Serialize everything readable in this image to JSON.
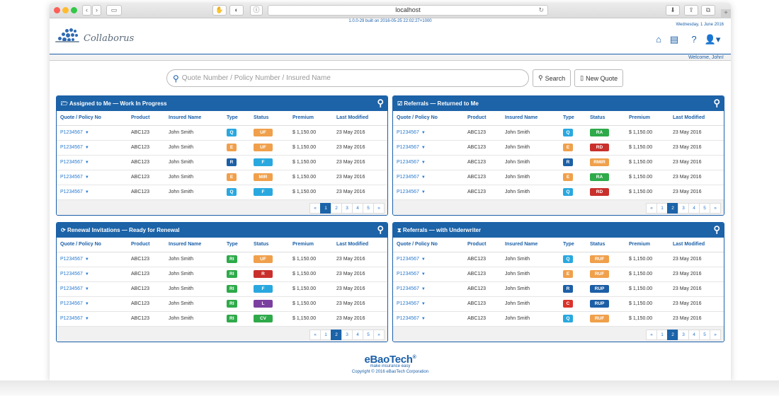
{
  "browser": {
    "url": "localhost"
  },
  "app": {
    "build": "1.0.0-29 built on 2016-05-25 22:02:27+1000",
    "logo_text": "Collaborus",
    "date": "Wednesday, 1 June 2016",
    "welcome": "Welcome, John!"
  },
  "search": {
    "placeholder": "Quote Number / Policy Number / Insured Name",
    "search_label": "Search",
    "new_quote_label": "New Quote"
  },
  "columns": [
    "Quote / Policy No",
    "Product",
    "Insured Name",
    "Type",
    "Status",
    "Premium",
    "Last Modified"
  ],
  "colors": {
    "Q": "#29a8df",
    "E": "#f0a04b",
    "R": "#1c5fa6",
    "RI": "#2eaa4a",
    "C": "#d9342b",
    "UF": "#f0a04b",
    "F": "#29a8df",
    "MIR": "#f0a04b",
    "RA": "#2eaa4a",
    "RD": "#c9302c",
    "RMIR": "#f0a04b",
    "R_status": "#c9302c",
    "L": "#7b3fa0",
    "CV": "#2eaa4a",
    "RUF": "#f0a04b",
    "RUP": "#1c5fa6"
  },
  "panels": [
    {
      "title": "Assigned to Me — Work In Progress",
      "icon": "folder-open-icon",
      "rows": [
        {
          "policy": "P1234567",
          "product": "ABC123",
          "insured": "John Smith",
          "type": "Q",
          "status": "UF",
          "premium": "$ 1,150.00",
          "modified": "23 May 2016"
        },
        {
          "policy": "P1234567",
          "product": "ABC123",
          "insured": "John Smith",
          "type": "E",
          "status": "UF",
          "premium": "$ 1,150.00",
          "modified": "23 May 2016"
        },
        {
          "policy": "P1234567",
          "product": "ABC123",
          "insured": "John Smith",
          "type": "R",
          "status": "F",
          "premium": "$ 1,150.00",
          "modified": "23 May 2016"
        },
        {
          "policy": "P1234567",
          "product": "ABC123",
          "insured": "John Smith",
          "type": "E",
          "status": "MIR",
          "premium": "$ 1,150.00",
          "modified": "23 May 2016"
        },
        {
          "policy": "P1234567",
          "product": "ABC123",
          "insured": "John Smith",
          "type": "Q",
          "status": "F",
          "premium": "$ 1,150.00",
          "modified": "23 May 2016"
        }
      ],
      "pager": {
        "pages": [
          "«",
          "1",
          "2",
          "3",
          "4",
          "5",
          "»"
        ],
        "active": "1"
      }
    },
    {
      "title": "Referrals — Returned to Me",
      "icon": "check-square-icon",
      "rows": [
        {
          "policy": "P1234567",
          "product": "ABC123",
          "insured": "John Smith",
          "type": "Q",
          "status": "RA",
          "premium": "$ 1,150.00",
          "modified": "23 May 2016"
        },
        {
          "policy": "P1234567",
          "product": "ABC123",
          "insured": "John Smith",
          "type": "E",
          "status": "RD",
          "premium": "$ 1,150.00",
          "modified": "23 May 2016"
        },
        {
          "policy": "P1234567",
          "product": "ABC123",
          "insured": "John Smith",
          "type": "R",
          "status": "RMIR",
          "premium": "$ 1,150.00",
          "modified": "23 May 2016"
        },
        {
          "policy": "P1234567",
          "product": "ABC123",
          "insured": "John Smith",
          "type": "E",
          "status": "RA",
          "premium": "$ 1,150.00",
          "modified": "23 May 2016"
        },
        {
          "policy": "P1234567",
          "product": "ABC123",
          "insured": "John Smith",
          "type": "Q",
          "status": "RD",
          "premium": "$ 1,150.00",
          "modified": "23 May 2016"
        }
      ],
      "pager": {
        "pages": [
          "«",
          "1",
          "2",
          "3",
          "4",
          "5",
          "»"
        ],
        "active": "2"
      }
    },
    {
      "title": "Renewal Invitations — Ready for Renewal",
      "icon": "refresh-icon",
      "rows": [
        {
          "policy": "P1234567",
          "product": "ABC123",
          "insured": "John Smith",
          "type": "RI",
          "status": "UF",
          "premium": "$ 1,150.00",
          "modified": "23 May 2016"
        },
        {
          "policy": "P1234567",
          "product": "ABC123",
          "insured": "John Smith",
          "type": "RI",
          "status": "R",
          "premium": "$ 1,150.00",
          "modified": "23 May 2016"
        },
        {
          "policy": "P1234567",
          "product": "ABC123",
          "insured": "John Smith",
          "type": "RI",
          "status": "F",
          "premium": "$ 1,150.00",
          "modified": "23 May 2016"
        },
        {
          "policy": "P1234567",
          "product": "ABC123",
          "insured": "John Smith",
          "type": "RI",
          "status": "L",
          "premium": "$ 1,150.00",
          "modified": "23 May 2016"
        },
        {
          "policy": "P1234567",
          "product": "ABC123",
          "insured": "John Smith",
          "type": "RI",
          "status": "CV",
          "premium": "$ 1,150.00",
          "modified": "23 May 2016"
        }
      ],
      "pager": {
        "pages": [
          "«",
          "1",
          "2",
          "3",
          "4",
          "5",
          "»"
        ],
        "active": "2"
      }
    },
    {
      "title": "Referrals — with Underwriter",
      "icon": "hourglass-icon",
      "rows": [
        {
          "policy": "P1234567",
          "product": "ABC123",
          "insured": "John Smith",
          "type": "Q",
          "status": "RUF",
          "premium": "$ 1,150.00",
          "modified": "23 May 2016"
        },
        {
          "policy": "P1234567",
          "product": "ABC123",
          "insured": "John Smith",
          "type": "E",
          "status": "RUF",
          "premium": "$ 1,150.00",
          "modified": "23 May 2016"
        },
        {
          "policy": "P1234567",
          "product": "ABC123",
          "insured": "John Smith",
          "type": "R",
          "status": "RUP",
          "premium": "$ 1,150.00",
          "modified": "23 May 2016"
        },
        {
          "policy": "P1234567",
          "product": "ABC123",
          "insured": "John Smith",
          "type": "C",
          "status": "RUP",
          "premium": "$ 1,150.00",
          "modified": "23 May 2016"
        },
        {
          "policy": "P1234567",
          "product": "ABC123",
          "insured": "John Smith",
          "type": "Q",
          "status": "RUF",
          "premium": "$ 1,150.00",
          "modified": "23 May 2016"
        }
      ],
      "pager": {
        "pages": [
          "«",
          "1",
          "2",
          "3",
          "4",
          "5",
          "»"
        ],
        "active": "2"
      }
    }
  ],
  "footer": {
    "brand": "eBaoTech",
    "trademark": "®",
    "tagline": "make insurance easy",
    "copyright": "Copyright © 2016 eBaoTech Corporation"
  }
}
